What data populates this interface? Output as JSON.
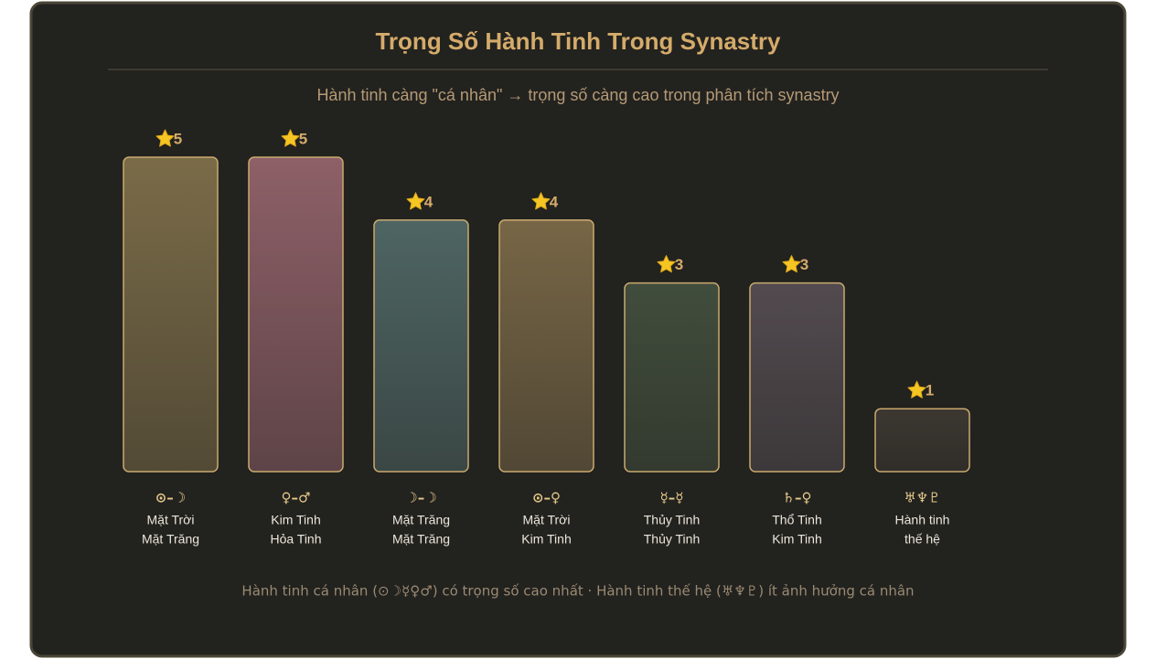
{
  "chart_data": {
    "type": "bar",
    "title": "Trọng Số Hành Tinh Trong Synastry",
    "subtitle": "Hành tinh càng \"cá nhân\" → trọng số càng cao trong phân tích synastry",
    "symbols": [
      "⊙–☽",
      "♀–♂",
      "☽–☽",
      "⊙–♀",
      "☿–☿",
      "♄–♀",
      "♅♆♇"
    ],
    "categories": [
      [
        "Mặt Trời",
        "Mặt Trăng"
      ],
      [
        "Kim Tinh",
        "Hỏa Tinh"
      ],
      [
        "Mặt Trăng",
        "Mặt Trăng"
      ],
      [
        "Mặt Trời",
        "Kim Tinh"
      ],
      [
        "Thủy Tinh",
        "Thủy Tinh"
      ],
      [
        "Thổ Tinh",
        "Kim Tinh"
      ],
      [
        "Hành tinh",
        "thế hệ"
      ]
    ],
    "values": [
      5,
      5,
      4,
      4,
      3,
      3,
      1
    ],
    "colors": [
      "#7a6b48",
      "#8e6068",
      "#4e6563",
      "#776646",
      "#414d3c",
      "#524a4f",
      "#3c3731"
    ],
    "ylim": [
      0,
      5
    ],
    "footnote": "Hành tinh cá nhân (⊙☽☿♀♂) có trọng số cao nhất · Hành tinh thế hệ (♅♆♇) ít ảnh hưởng cá nhân"
  }
}
